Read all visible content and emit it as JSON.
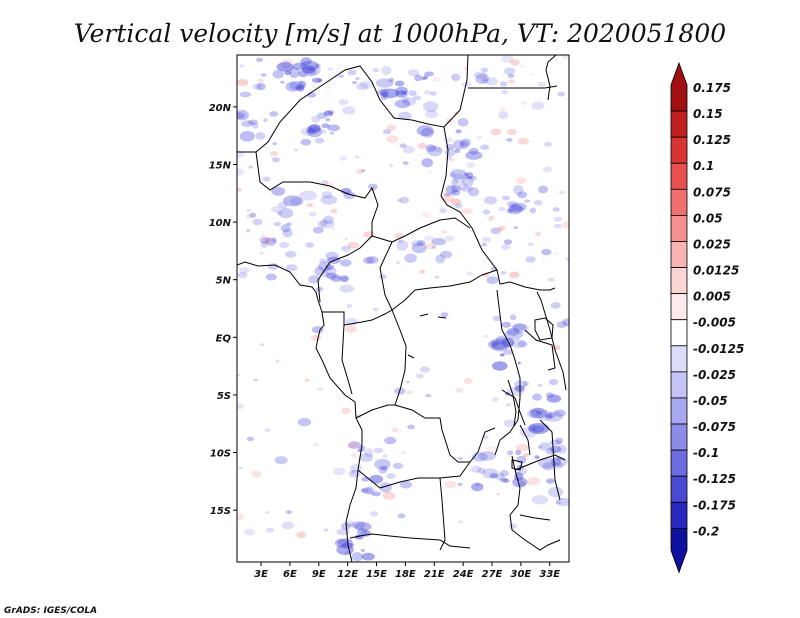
{
  "chart_data": {
    "type": "heatmap",
    "title": "Vertical velocity [m/s] at 1000hPa, VT: 2020051800",
    "x_ticks": [
      "3E",
      "6E",
      "9E",
      "12E",
      "15E",
      "18E",
      "21E",
      "24E",
      "27E",
      "30E",
      "33E"
    ],
    "y_ticks": [
      "20N",
      "15N",
      "10N",
      "5N",
      "EQ",
      "5S",
      "10S",
      "15S"
    ],
    "x_tick_values": [
      3,
      6,
      9,
      12,
      15,
      18,
      21,
      24,
      27,
      30,
      33
    ],
    "y_tick_values": [
      20,
      15,
      10,
      5,
      0,
      -5,
      -10,
      -15
    ],
    "xlim": [
      0.5,
      35
    ],
    "ylim": [
      -19.5,
      24.5
    ],
    "colorbar": {
      "levels": [
        "0.175",
        "0.15",
        "0.125",
        "0.1",
        "0.075",
        "0.05",
        "0.025",
        "0.0125",
        "0.005",
        "-0.005",
        "-0.0125",
        "-0.025",
        "-0.05",
        "-0.075",
        "-0.1",
        "-0.125",
        "-0.175",
        "-0.2"
      ],
      "colors": [
        "#a01010",
        "#c02020",
        "#d83434",
        "#e85050",
        "#f07070",
        "#f49090",
        "#f8b4b4",
        "#fcd4d4",
        "#fdeaea",
        "#ffffff",
        "#dcdcfa",
        "#c4c4f6",
        "#a8a8f0",
        "#8c8ce8",
        "#6c6ce0",
        "#4a4ad4",
        "#2828c0",
        "#1010a0"
      ],
      "extend": "both"
    },
    "shading": {
      "negative_color": "#5050dc",
      "positive_color": "#f08080"
    }
  },
  "credit": "GrADS: IGES/COLA"
}
